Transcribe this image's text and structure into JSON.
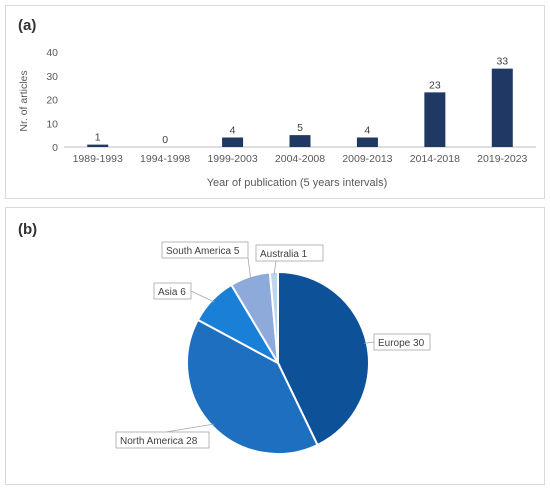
{
  "chart_data": [
    {
      "panel_label": "(a)",
      "type": "bar",
      "categories": [
        "1989-1993",
        "1994-1998",
        "1999-2003",
        "2004-2008",
        "2009-2013",
        "2014-2018",
        "2019-2023"
      ],
      "values": [
        1,
        0,
        4,
        5,
        4,
        23,
        33
      ],
      "data_labels": [
        "1",
        "0",
        "4",
        "5",
        "4",
        "23",
        "33"
      ],
      "xlabel": "Year of publication (5 years intervals)",
      "ylabel": "Nr. of articles",
      "ylim": [
        0,
        40
      ],
      "yticks": [
        "0",
        "10",
        "20",
        "30",
        "40"
      ],
      "grid": false,
      "bar_color": "#203864"
    },
    {
      "panel_label": "(b)",
      "type": "pie",
      "slices": [
        {
          "name": "Europe",
          "value": 30,
          "label": "Europe 30",
          "color": "#0d5199"
        },
        {
          "name": "North America",
          "value": 28,
          "label": "North America 28",
          "color": "#1f6fc1"
        },
        {
          "name": "Asia",
          "value": 6,
          "label": "Asia 6",
          "color": "#1a7fd6"
        },
        {
          "name": "South America",
          "value": 5,
          "label": "South America 5",
          "color": "#8eaadb"
        },
        {
          "name": "Australia",
          "value": 1,
          "label": "Australia 1",
          "color": "#bdd7ee"
        }
      ]
    }
  ]
}
